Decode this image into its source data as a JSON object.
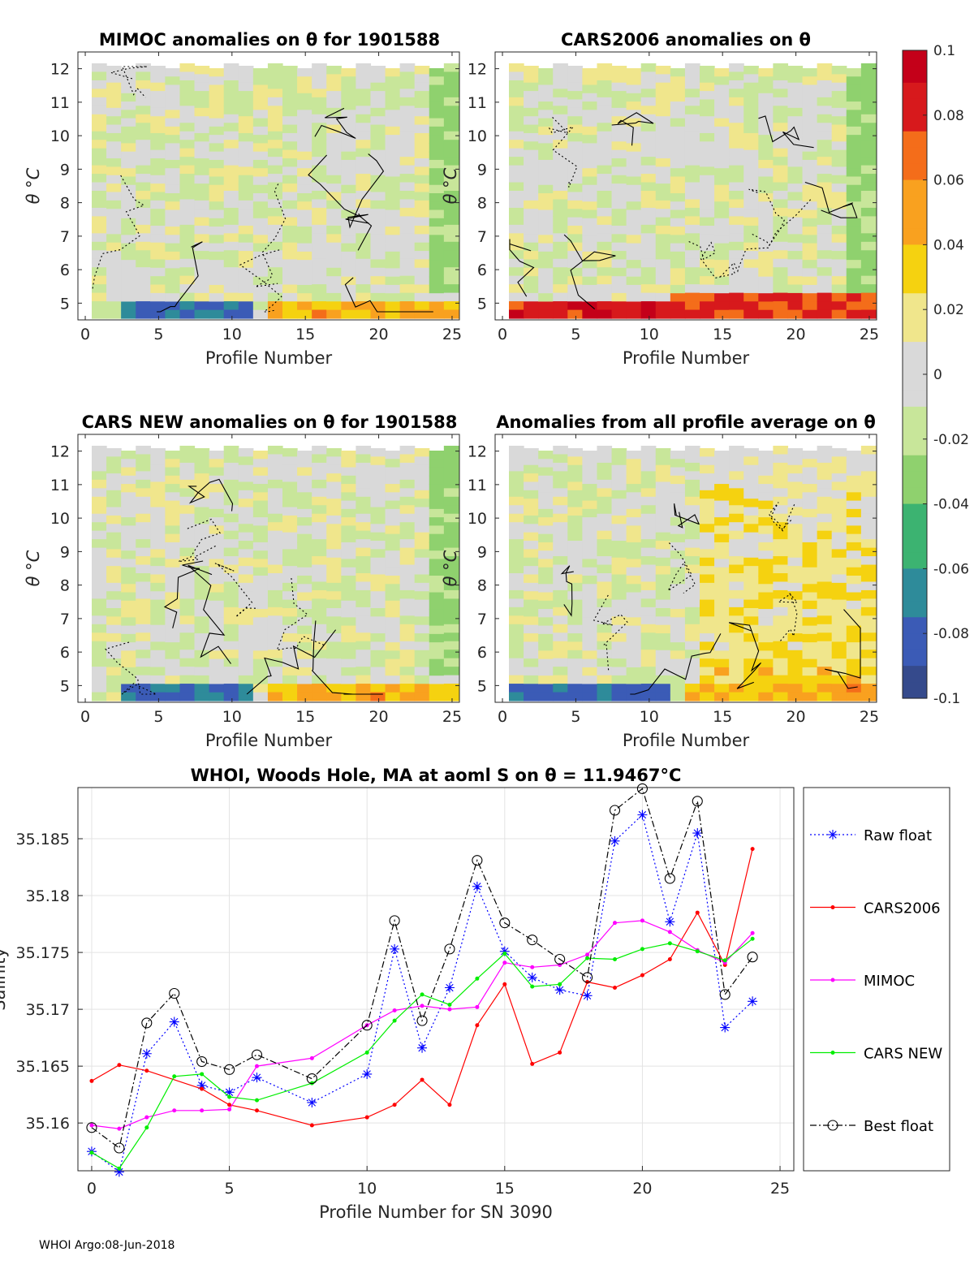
{
  "panels": [
    {
      "title": "MIMOC anomalies on θ  for 1901588",
      "xlabel": "Profile Number",
      "ylabel": "θ °C",
      "x_ticks": [
        0,
        5,
        10,
        15,
        20,
        25
      ],
      "y_ticks": [
        5,
        6,
        7,
        8,
        9,
        10,
        11,
        12
      ],
      "xlim": [
        -0.5,
        25.5
      ],
      "ylim": [
        4.5,
        12.5
      ]
    },
    {
      "title": "CARS2006 anomalies on θ",
      "xlabel": "Profile Number",
      "ylabel": "θ °C",
      "x_ticks": [
        0,
        5,
        10,
        15,
        20,
        25
      ],
      "y_ticks": [
        5,
        6,
        7,
        8,
        9,
        10,
        11,
        12
      ],
      "xlim": [
        -0.5,
        25.5
      ],
      "ylim": [
        4.5,
        12.5
      ]
    },
    {
      "title": "CARS NEW anomalies on θ for 1901588",
      "xlabel": "Profile Number",
      "ylabel": "θ °C",
      "x_ticks": [
        0,
        5,
        10,
        15,
        20,
        25
      ],
      "y_ticks": [
        5,
        6,
        7,
        8,
        9,
        10,
        11,
        12
      ],
      "xlim": [
        -0.5,
        25.5
      ],
      "ylim": [
        4.5,
        12.5
      ]
    },
    {
      "title": "Anomalies from all profile average on θ",
      "xlabel": "Profile Number",
      "ylabel": "θ °C",
      "x_ticks": [
        0,
        5,
        10,
        15,
        20,
        25
      ],
      "y_ticks": [
        5,
        6,
        7,
        8,
        9,
        10,
        11,
        12
      ],
      "xlim": [
        -0.5,
        25.5
      ],
      "ylim": [
        4.5,
        12.5
      ]
    }
  ],
  "colorbar": {
    "ticks": [
      "0.1",
      "0.08",
      "0.06",
      "0.04",
      "0.02",
      "0",
      "-0.02",
      "-0.04",
      "-0.06",
      "-0.08",
      "-0.1"
    ],
    "range": [
      -0.1,
      0.1
    ],
    "colors": [
      "#c40019",
      "#d7191c",
      "#f46d1a",
      "#f9a11f",
      "#f5d210",
      "#f0e68c",
      "#d9d9d9",
      "#c8e69a",
      "#8fd16e",
      "#3cb371",
      "#2e8b9a",
      "#3b5bb6",
      "#354a8c"
    ]
  },
  "chart_data": {
    "type": "line",
    "title": "WHOI, Woods Hole, MA at aoml S on θ = 11.9467°C",
    "xlabel": "Profile Number for SN 3090",
    "ylabel": "Salinity",
    "xlim": [
      -0.5,
      25.5
    ],
    "ylim": [
      35.1558,
      35.1895
    ],
    "x_ticks": [
      0,
      5,
      10,
      15,
      20,
      25
    ],
    "y_ticks": [
      35.16,
      35.165,
      35.17,
      35.175,
      35.18,
      35.185
    ],
    "y_tick_labels": [
      "35.16",
      "35.165",
      "35.17",
      "35.175",
      "35.18",
      "35.185"
    ],
    "legend_position": "right",
    "series": [
      {
        "name": "Raw float",
        "color": "#0000ff",
        "dash": "2,3",
        "marker": "asterisk",
        "x": [
          0,
          1,
          2,
          3,
          4,
          5,
          6,
          8,
          10,
          11,
          12,
          13,
          14,
          15,
          16,
          17,
          18,
          19,
          20,
          21,
          22,
          23,
          24
        ],
        "y": [
          35.1575,
          35.1557,
          35.1661,
          35.1689,
          35.1633,
          35.1627,
          35.164,
          35.1618,
          35.1643,
          35.1753,
          35.1666,
          35.1719,
          35.1808,
          35.1751,
          35.1728,
          35.1717,
          35.1712,
          35.1848,
          35.1871,
          35.1777,
          35.1855,
          35.1684,
          35.1707
        ]
      },
      {
        "name": "CARS2006",
        "color": "#ff0000",
        "dash": "",
        "marker": "dot",
        "x": [
          0,
          1,
          2,
          4,
          5,
          6,
          8,
          10,
          11,
          12,
          13,
          14,
          15,
          16,
          17,
          18,
          19,
          20,
          21,
          22,
          23,
          24
        ],
        "y": [
          35.1637,
          35.1651,
          35.1646,
          35.163,
          35.1616,
          35.1611,
          35.1598,
          35.1605,
          35.1616,
          35.1638,
          35.1616,
          35.1686,
          35.1722,
          35.1652,
          35.1662,
          35.1724,
          35.1719,
          35.173,
          35.1744,
          35.1785,
          35.1739,
          35.1841
        ]
      },
      {
        "name": "MIMOC",
        "color": "#ff00ff",
        "dash": "",
        "marker": "dot",
        "x": [
          0,
          1,
          2,
          3,
          4,
          5,
          6,
          8,
          10,
          11,
          12,
          13,
          14,
          15,
          16,
          17,
          18,
          19,
          20,
          21,
          22,
          23,
          24
        ],
        "y": [
          35.1598,
          35.1595,
          35.1605,
          35.1611,
          35.1611,
          35.1612,
          35.165,
          35.1657,
          35.1686,
          35.1699,
          35.1703,
          35.17,
          35.1702,
          35.1741,
          35.1737,
          35.1739,
          35.1748,
          35.1776,
          35.1778,
          35.1768,
          35.1752,
          35.1741,
          35.1767
        ]
      },
      {
        "name": "CARS NEW",
        "color": "#00ee00",
        "dash": "",
        "marker": "dot",
        "x": [
          0,
          1,
          2,
          3,
          4,
          5,
          6,
          8,
          10,
          11,
          12,
          13,
          14,
          15,
          16,
          17,
          18,
          19,
          20,
          21,
          22,
          23,
          24
        ],
        "y": [
          35.1574,
          35.156,
          35.1596,
          35.1641,
          35.1643,
          35.1623,
          35.162,
          35.1635,
          35.1662,
          35.169,
          35.1713,
          35.1704,
          35.1727,
          35.1749,
          35.172,
          35.1722,
          35.1745,
          35.1744,
          35.1753,
          35.1758,
          35.1751,
          35.1743,
          35.1762
        ]
      },
      {
        "name": "Best float",
        "color": "#000000",
        "dash": "8,3,2,3",
        "marker": "circle",
        "x": [
          0,
          1,
          2,
          3,
          4,
          5,
          6,
          8,
          10,
          11,
          12,
          13,
          14,
          15,
          16,
          17,
          18,
          19,
          20,
          21,
          22,
          23,
          24
        ],
        "y": [
          35.1596,
          35.1578,
          35.1688,
          35.1714,
          35.1654,
          35.1647,
          35.166,
          35.1639,
          35.1686,
          35.1778,
          35.169,
          35.1753,
          35.1831,
          35.1776,
          35.1761,
          35.1744,
          35.1728,
          35.1875,
          35.1894,
          35.1815,
          35.1883,
          35.1713,
          35.1746
        ]
      }
    ]
  },
  "footer": "WHOI Argo:08-Jun-2018"
}
